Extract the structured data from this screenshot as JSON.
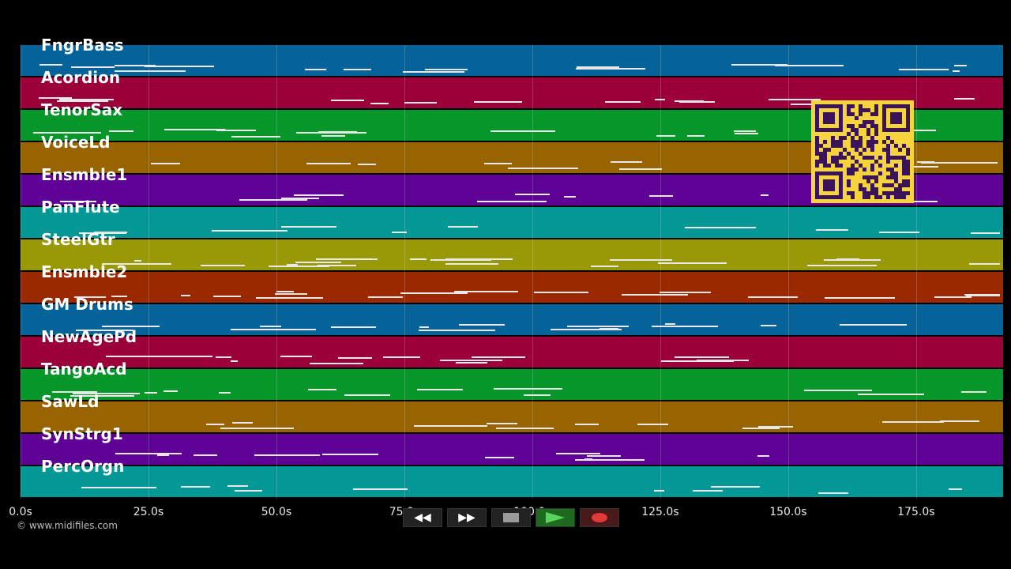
{
  "tracks": [
    {
      "name": "FngrBass",
      "color": "#05639a"
    },
    {
      "name": "Acordion",
      "color": "#9b0039"
    },
    {
      "name": "TenorSax",
      "color": "#069629"
    },
    {
      "name": "VoiceLd",
      "color": "#986400"
    },
    {
      "name": "Ensmble1",
      "color": "#5f0296"
    },
    {
      "name": "PanFlute",
      "color": "#039896"
    },
    {
      "name": "SteelGtr",
      "color": "#999908"
    },
    {
      "name": "Ensmble2",
      "color": "#9a2900"
    },
    {
      "name": "GM Drums",
      "color": "#05639a"
    },
    {
      "name": "NewAgePd",
      "color": "#9b0039"
    },
    {
      "name": "TangoAcd",
      "color": "#069629"
    },
    {
      "name": "SawLd",
      "color": "#986400"
    },
    {
      "name": "SynStrg1",
      "color": "#5f0296"
    },
    {
      "name": "PercOrgn",
      "color": "#039896"
    }
  ],
  "time_axis": {
    "ticks": [
      {
        "t": 0,
        "label": "0.0s"
      },
      {
        "t": 25,
        "label": "25.0s"
      },
      {
        "t": 50,
        "label": "50.0s"
      },
      {
        "t": 75,
        "label": "75.0s"
      },
      {
        "t": 100,
        "label": "100.0s"
      },
      {
        "t": 125,
        "label": "125.0s"
      },
      {
        "t": 150,
        "label": "150.0s"
      },
      {
        "t": 175,
        "label": "175.0s"
      }
    ],
    "max": 192
  },
  "copyright": "© www.midifiles.com",
  "transport": {
    "rewind_icon": "rewind-icon",
    "fast_forward_icon": "fast-forward-icon",
    "stop_icon": "stop-icon",
    "play_icon": "play-icon",
    "record_icon": "record-icon"
  },
  "qr_icon": "qr-code-icon"
}
